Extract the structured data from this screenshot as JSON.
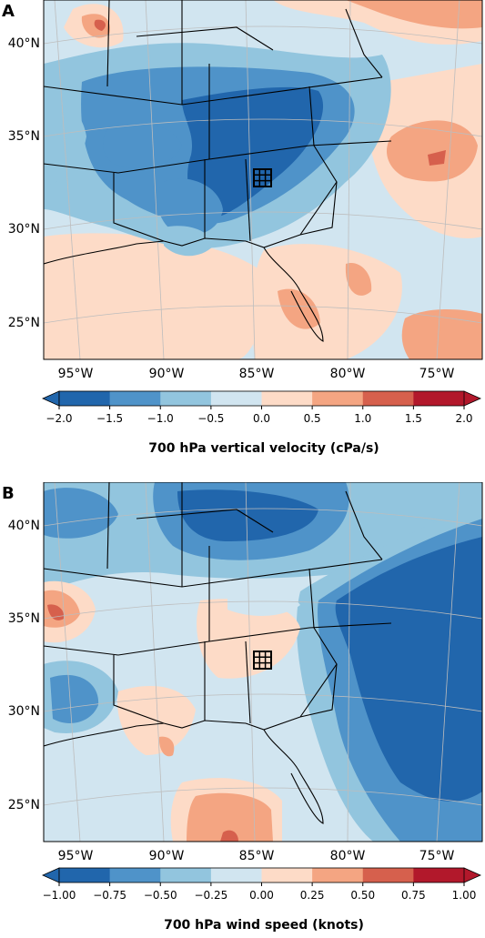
{
  "palette": [
    "#2166ac",
    "#4f93c9",
    "#92c5de",
    "#d1e5f0",
    "#fddbc7",
    "#f4a582",
    "#d6604d",
    "#b2182b"
  ],
  "extend_low": "#2166ac",
  "extend_high": "#b2182b",
  "map": {
    "lat_labels": [
      "40°N",
      "35°N",
      "30°N",
      "25°N"
    ],
    "lon_labels": [
      "95°W",
      "90°W",
      "85°W",
      "80°W",
      "75°W"
    ],
    "domain_marker": "grid-box"
  },
  "panels": [
    {
      "letter": "A",
      "colorbar": {
        "ticks": [
          "−2.0",
          "−1.5",
          "−1.0",
          "−0.5",
          "0.0",
          "0.5",
          "1.0",
          "1.5",
          "2.0"
        ],
        "label": "700 hPa vertical velocity (cPa/s)"
      }
    },
    {
      "letter": "B",
      "colorbar": {
        "ticks": [
          "−1.00",
          "−0.75",
          "−0.50",
          "−0.25",
          "0.00",
          "0.25",
          "0.50",
          "0.75",
          "1.00"
        ],
        "label": "700 hPa wind speed (knots)"
      }
    }
  ]
}
